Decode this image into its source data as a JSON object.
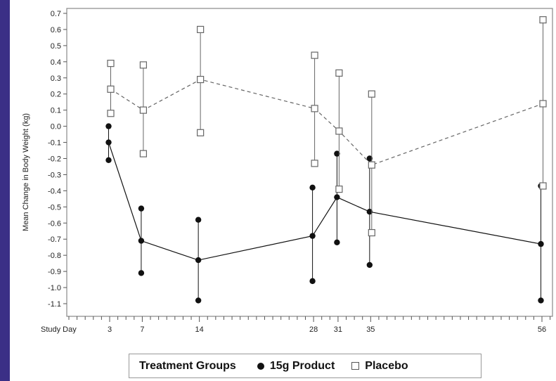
{
  "chart_data": {
    "type": "line",
    "ylabel": "Mean Change in Body Weight (kg)",
    "xlabel": "Study Day",
    "x": [
      3,
      7,
      14,
      28,
      31,
      35,
      56
    ],
    "x_tick_labels": [
      "3",
      "7",
      "14",
      "28",
      "31",
      "35",
      "56"
    ],
    "xlim": [
      -2,
      57
    ],
    "ylim": [
      -1.1,
      0.7
    ],
    "y_ticks": [
      0.7,
      0.6,
      0.5,
      0.4,
      0.3,
      0.2,
      0.1,
      0.0,
      -0.1,
      -0.2,
      -0.3,
      -0.4,
      -0.5,
      -0.6,
      -0.7,
      -0.8,
      -0.9,
      -1.0,
      -1.1
    ],
    "y_tick_labels": [
      "0.7",
      "0.6",
      "0.5",
      "0.4",
      "0.3",
      "0.2",
      "0.1",
      "0.0",
      "-0.1",
      "-0.2",
      "-0.3",
      "-0.4",
      "-0.5",
      "-0.6",
      "-0.7",
      "-0.8",
      "-0.9",
      "-1.0",
      "-1.1"
    ],
    "grid": false,
    "legend_position": "bottom",
    "series": [
      {
        "name": "15g Product",
        "marker": "filled-circle",
        "line_style": "solid",
        "values": [
          -0.1,
          -0.71,
          -0.83,
          -0.68,
          -0.44,
          -0.53,
          -0.73
        ],
        "lower": [
          -0.21,
          -0.91,
          -1.08,
          -0.96,
          -0.72,
          -0.86,
          -1.08
        ],
        "upper": [
          0.0,
          -0.51,
          -0.58,
          -0.38,
          -0.17,
          -0.2,
          -0.37
        ]
      },
      {
        "name": "Placebo",
        "marker": "open-square",
        "line_style": "dashed",
        "values": [
          0.23,
          0.1,
          0.29,
          0.11,
          -0.03,
          -0.24,
          0.14
        ],
        "lower": [
          0.08,
          -0.17,
          -0.04,
          -0.23,
          -0.39,
          -0.66,
          -0.37
        ],
        "upper": [
          0.39,
          0.38,
          0.6,
          0.44,
          0.33,
          0.2,
          0.66
        ]
      }
    ]
  },
  "legend": {
    "title": "Treatment Groups",
    "items": [
      {
        "label": "15g Product",
        "marker": "filled-circle"
      },
      {
        "label": "Placebo",
        "marker": "open-square"
      }
    ]
  },
  "colors": {
    "series": "#111111",
    "placebo": "#666666",
    "axis": "#888888",
    "left_bar": "#3b2f86"
  }
}
